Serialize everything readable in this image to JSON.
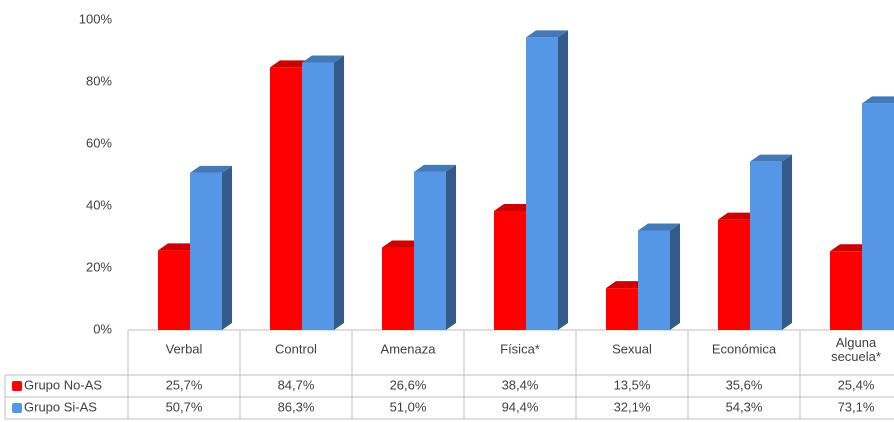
{
  "chart_data": {
    "type": "bar3d",
    "categories": [
      "Verbal",
      "Control",
      "Amenaza",
      "Física*",
      "Sexual",
      "Económica",
      "Alguna secuela*"
    ],
    "series": [
      {
        "name": "Grupo No-AS",
        "color": "#ff0000",
        "values": [
          25.7,
          84.7,
          26.6,
          38.4,
          13.5,
          35.6,
          25.4
        ],
        "value_labels": [
          "25,7%",
          "84,7%",
          "26,6%",
          "38,4%",
          "13,5%",
          "35,6%",
          "25,4%"
        ]
      },
      {
        "name": "Grupo Si-AS",
        "color": "#5597e6",
        "values": [
          50.7,
          86.3,
          51.0,
          94.4,
          32.1,
          54.3,
          73.1
        ],
        "value_labels": [
          "50,7%",
          "86,3%",
          "51,0%",
          "94,4%",
          "32,1%",
          "54,3%",
          "73,1%"
        ]
      }
    ],
    "ylim": [
      0,
      100
    ],
    "yticks": [
      {
        "value": 0,
        "label": "0%"
      },
      {
        "value": 20,
        "label": "20%"
      },
      {
        "value": 40,
        "label": "40%"
      },
      {
        "value": 60,
        "label": "60%"
      },
      {
        "value": 80,
        "label": "80%"
      },
      {
        "value": 100,
        "label": "100%"
      }
    ]
  }
}
